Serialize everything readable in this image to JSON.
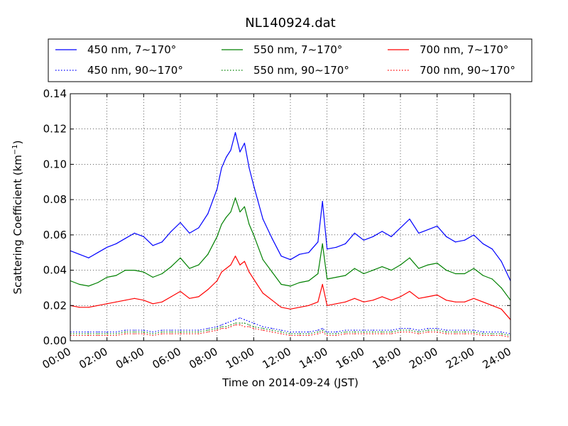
{
  "chart_data": {
    "type": "line",
    "title": "NL140924.dat",
    "xlabel": "Time on 2014-09-24 (JST)",
    "ylabel": "Scattering Coefficient (km",
    "ylabel_exp": "−1",
    "ylabel_end": ")",
    "xlim": [
      0,
      24
    ],
    "ylim": [
      0,
      0.14
    ],
    "grid": true,
    "legend_position": "top",
    "x_ticks": [
      "00:00",
      "02:00",
      "04:00",
      "06:00",
      "08:00",
      "10:00",
      "12:00",
      "14:00",
      "16:00",
      "18:00",
      "20:00",
      "22:00",
      "24:00"
    ],
    "y_ticks": [
      "0.00",
      "0.02",
      "0.04",
      "0.06",
      "0.08",
      "0.10",
      "0.12",
      "0.14"
    ],
    "x_hours": [
      0,
      0.5,
      1,
      1.5,
      2,
      2.5,
      3,
      3.5,
      4,
      4.5,
      5,
      5.5,
      6,
      6.5,
      7,
      7.5,
      8,
      8.25,
      8.5,
      8.75,
      9,
      9.25,
      9.5,
      9.75,
      10,
      10.5,
      11,
      11.5,
      12,
      12.5,
      13,
      13.5,
      13.75,
      14,
      14.5,
      15,
      15.5,
      16,
      16.5,
      17,
      17.5,
      18,
      18.5,
      19,
      19.5,
      20,
      20.5,
      21,
      21.5,
      22,
      22.5,
      23,
      23.5,
      24
    ],
    "series": [
      {
        "name": "450 nm, 7∼170°",
        "color": "#0000ff",
        "style": "solid",
        "values": [
          0.051,
          0.049,
          0.047,
          0.05,
          0.053,
          0.055,
          0.058,
          0.061,
          0.059,
          0.054,
          0.056,
          0.062,
          0.067,
          0.061,
          0.064,
          0.072,
          0.086,
          0.098,
          0.104,
          0.108,
          0.118,
          0.107,
          0.112,
          0.098,
          0.088,
          0.069,
          0.058,
          0.048,
          0.046,
          0.049,
          0.05,
          0.056,
          0.079,
          0.052,
          0.053,
          0.055,
          0.061,
          0.057,
          0.059,
          0.062,
          0.059,
          0.064,
          0.069,
          0.061,
          0.063,
          0.065,
          0.059,
          0.056,
          0.057,
          0.06,
          0.055,
          0.052,
          0.045,
          0.034
        ]
      },
      {
        "name": "550 nm, 7∼170°",
        "color": "#008000",
        "style": "solid",
        "values": [
          0.034,
          0.032,
          0.031,
          0.033,
          0.036,
          0.037,
          0.04,
          0.04,
          0.039,
          0.036,
          0.038,
          0.042,
          0.047,
          0.041,
          0.043,
          0.049,
          0.059,
          0.066,
          0.07,
          0.073,
          0.081,
          0.073,
          0.076,
          0.066,
          0.06,
          0.046,
          0.039,
          0.032,
          0.031,
          0.033,
          0.034,
          0.038,
          0.055,
          0.035,
          0.036,
          0.037,
          0.041,
          0.038,
          0.04,
          0.042,
          0.04,
          0.043,
          0.047,
          0.041,
          0.043,
          0.044,
          0.04,
          0.038,
          0.038,
          0.041,
          0.037,
          0.035,
          0.03,
          0.023
        ]
      },
      {
        "name": "700 nm, 7∼170°",
        "color": "#ff0000",
        "style": "solid",
        "values": [
          0.02,
          0.019,
          0.019,
          0.02,
          0.021,
          0.022,
          0.023,
          0.024,
          0.023,
          0.021,
          0.022,
          0.025,
          0.028,
          0.024,
          0.025,
          0.029,
          0.034,
          0.039,
          0.041,
          0.043,
          0.048,
          0.043,
          0.045,
          0.039,
          0.035,
          0.027,
          0.023,
          0.019,
          0.018,
          0.019,
          0.02,
          0.022,
          0.032,
          0.02,
          0.021,
          0.022,
          0.024,
          0.022,
          0.023,
          0.025,
          0.023,
          0.025,
          0.028,
          0.024,
          0.025,
          0.026,
          0.023,
          0.022,
          0.022,
          0.024,
          0.022,
          0.02,
          0.018,
          0.012
        ]
      },
      {
        "name": "450 nm, 90∼170°",
        "color": "#0000ff",
        "style": "dotted",
        "values": [
          0.005,
          0.005,
          0.005,
          0.005,
          0.005,
          0.005,
          0.006,
          0.006,
          0.006,
          0.005,
          0.006,
          0.006,
          0.006,
          0.006,
          0.006,
          0.007,
          0.008,
          0.009,
          0.01,
          0.011,
          0.012,
          0.013,
          0.012,
          0.011,
          0.01,
          0.008,
          0.007,
          0.006,
          0.005,
          0.005,
          0.005,
          0.006,
          0.007,
          0.005,
          0.005,
          0.006,
          0.006,
          0.006,
          0.006,
          0.006,
          0.006,
          0.007,
          0.007,
          0.006,
          0.007,
          0.007,
          0.006,
          0.006,
          0.006,
          0.006,
          0.005,
          0.005,
          0.005,
          0.004
        ]
      },
      {
        "name": "550 nm, 90∼170°",
        "color": "#008000",
        "style": "dotted",
        "values": [
          0.004,
          0.004,
          0.004,
          0.004,
          0.004,
          0.004,
          0.005,
          0.005,
          0.005,
          0.004,
          0.005,
          0.005,
          0.005,
          0.005,
          0.005,
          0.006,
          0.007,
          0.008,
          0.008,
          0.009,
          0.01,
          0.01,
          0.01,
          0.009,
          0.008,
          0.007,
          0.006,
          0.005,
          0.004,
          0.004,
          0.004,
          0.005,
          0.006,
          0.004,
          0.004,
          0.005,
          0.005,
          0.005,
          0.005,
          0.005,
          0.005,
          0.006,
          0.006,
          0.005,
          0.006,
          0.006,
          0.005,
          0.005,
          0.005,
          0.005,
          0.004,
          0.004,
          0.004,
          0.003
        ]
      },
      {
        "name": "700 nm, 90∼170°",
        "color": "#ff0000",
        "style": "dotted",
        "values": [
          0.003,
          0.003,
          0.003,
          0.003,
          0.003,
          0.003,
          0.004,
          0.004,
          0.004,
          0.003,
          0.004,
          0.004,
          0.004,
          0.004,
          0.004,
          0.005,
          0.006,
          0.007,
          0.007,
          0.008,
          0.009,
          0.009,
          0.008,
          0.008,
          0.007,
          0.006,
          0.005,
          0.004,
          0.003,
          0.003,
          0.003,
          0.004,
          0.005,
          0.003,
          0.003,
          0.004,
          0.004,
          0.004,
          0.004,
          0.004,
          0.004,
          0.005,
          0.005,
          0.004,
          0.005,
          0.005,
          0.004,
          0.004,
          0.004,
          0.004,
          0.003,
          0.003,
          0.003,
          0.002
        ]
      }
    ]
  }
}
